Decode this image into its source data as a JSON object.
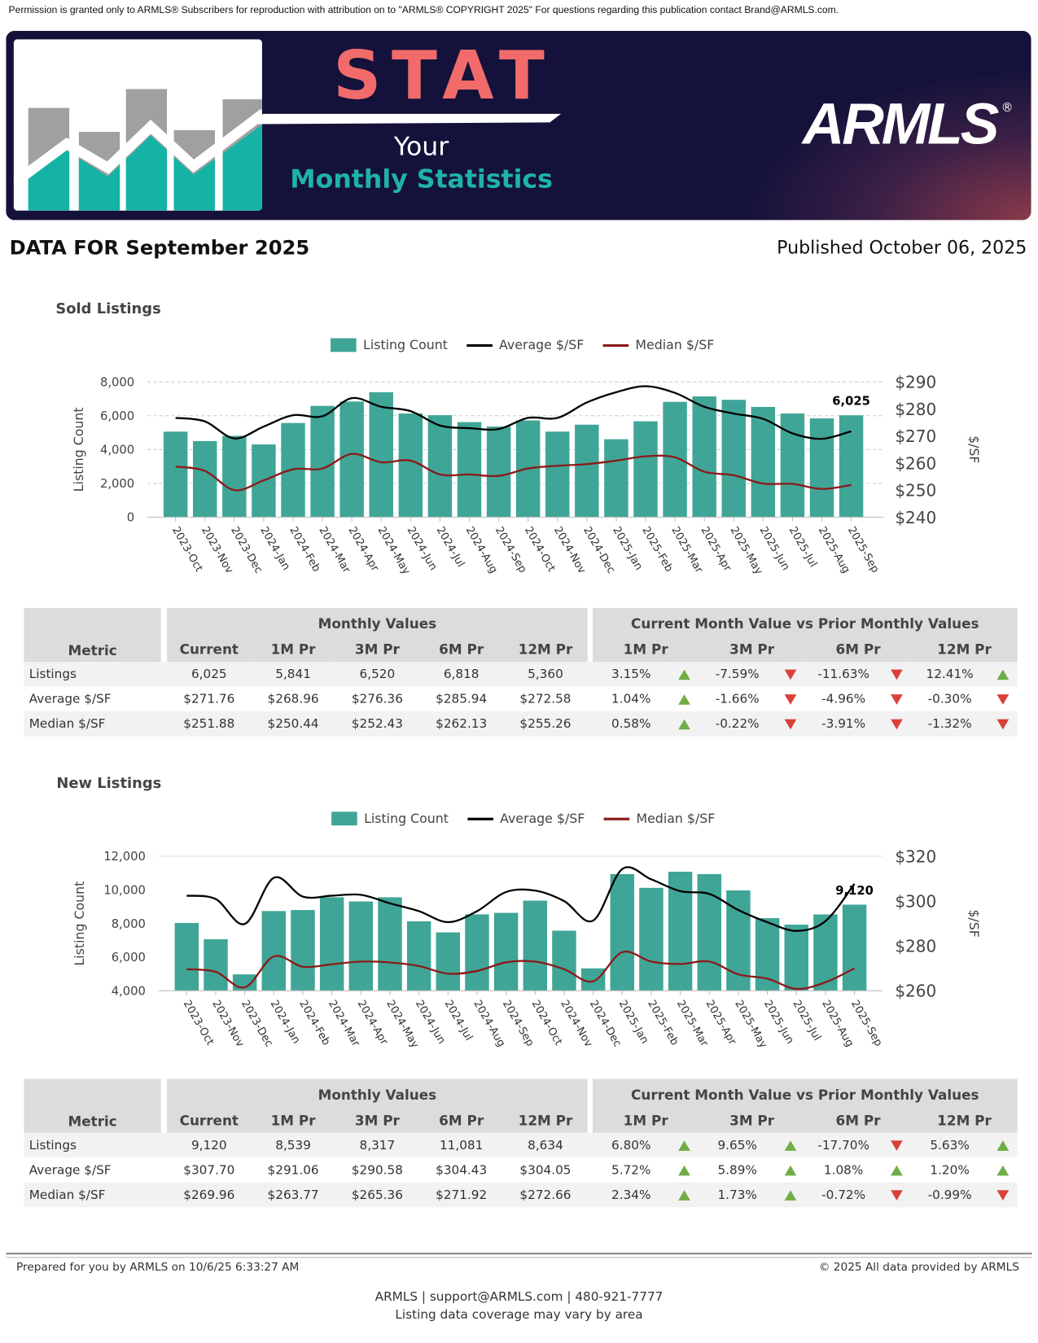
{
  "permission": "Permission is granted only to ARMLS® Subscribers for reproduction with attribution on to \"ARMLS® COPYRIGHT 2025\" For questions regarding this publication contact Brand@ARMLS.com.",
  "banner": {
    "stat": "STAT",
    "your": "Your",
    "monthly": "Monthly Statistics",
    "logo": "ARMLS",
    "reg": "®",
    "colors": {
      "navy": "#14123a",
      "coral": "#f26b6b",
      "teal": "#1fb3a8"
    }
  },
  "data_for": "DATA FOR September 2025",
  "published": "Published October 06, 2025",
  "legend": {
    "count": "Listing Count",
    "avg": "Average $/SF",
    "median": "Median $/SF"
  },
  "colors": {
    "bar": "#3fa597",
    "avg": "#000000",
    "median": "#8b1a1a",
    "up": "#70ad47",
    "down": "#d9413a"
  },
  "sections": [
    {
      "title": "Sold Listings",
      "table": {
        "group1": "Monthly Values",
        "group2": "Current Month Value vs Prior Monthly Values",
        "metric": "Metric",
        "cols": [
          "Current",
          "1M Pr",
          "3M Pr",
          "6M Pr",
          "12M Pr"
        ],
        "cmp_cols": [
          "1M Pr",
          "3M Pr",
          "6M Pr",
          "12M Pr"
        ],
        "rows": [
          {
            "metric": "Listings",
            "values": [
              "6,025",
              "5,841",
              "6,520",
              "6,818",
              "5,360"
            ],
            "cmp": [
              [
                "3.15%",
                "up"
              ],
              [
                "-7.59%",
                "down"
              ],
              [
                "-11.63%",
                "down"
              ],
              [
                "12.41%",
                "up"
              ]
            ]
          },
          {
            "metric": "Average $/SF",
            "values": [
              "$271.76",
              "$268.96",
              "$276.36",
              "$285.94",
              "$272.58"
            ],
            "cmp": [
              [
                "1.04%",
                "up"
              ],
              [
                "-1.66%",
                "down"
              ],
              [
                "-4.96%",
                "down"
              ],
              [
                "-0.30%",
                "down"
              ]
            ]
          },
          {
            "metric": "Median $/SF",
            "values": [
              "$251.88",
              "$250.44",
              "$252.43",
              "$262.13",
              "$255.26"
            ],
            "cmp": [
              [
                "0.58%",
                "up"
              ],
              [
                "-0.22%",
                "down"
              ],
              [
                "-3.91%",
                "down"
              ],
              [
                "-1.32%",
                "down"
              ]
            ]
          }
        ]
      }
    },
    {
      "title": "New Listings",
      "table": {
        "group1": "Monthly Values",
        "group2": "Current Month Value vs Prior Monthly Values",
        "metric": "Metric",
        "cols": [
          "Current",
          "1M Pr",
          "3M Pr",
          "6M Pr",
          "12M Pr"
        ],
        "cmp_cols": [
          "1M Pr",
          "3M Pr",
          "6M Pr",
          "12M Pr"
        ],
        "rows": [
          {
            "metric": "Listings",
            "values": [
              "9,120",
              "8,539",
              "8,317",
              "11,081",
              "8,634"
            ],
            "cmp": [
              [
                "6.80%",
                "up"
              ],
              [
                "9.65%",
                "up"
              ],
              [
                "-17.70%",
                "down"
              ],
              [
                "5.63%",
                "up"
              ]
            ]
          },
          {
            "metric": "Average $/SF",
            "values": [
              "$307.70",
              "$291.06",
              "$290.58",
              "$304.43",
              "$304.05"
            ],
            "cmp": [
              [
                "5.72%",
                "up"
              ],
              [
                "5.89%",
                "up"
              ],
              [
                "1.08%",
                "up"
              ],
              [
                "1.20%",
                "up"
              ]
            ]
          },
          {
            "metric": "Median $/SF",
            "values": [
              "$269.96",
              "$263.77",
              "$265.36",
              "$271.92",
              "$272.66"
            ],
            "cmp": [
              [
                "2.34%",
                "up"
              ],
              [
                "1.73%",
                "up"
              ],
              [
                "-0.72%",
                "down"
              ],
              [
                "-0.99%",
                "down"
              ]
            ]
          }
        ]
      }
    }
  ],
  "chart_data": [
    {
      "type": "bar",
      "title": "Sold Listings",
      "ylabel": "Listing Count",
      "y2label": "$/SF",
      "ylim": [
        0,
        8000
      ],
      "y2lim": [
        240,
        290
      ],
      "yticks": [
        "0",
        "2,000",
        "4,000",
        "6,000",
        "8,000"
      ],
      "y2ticks": [
        "$240",
        "$250",
        "$260",
        "$270",
        "$280",
        "$290"
      ],
      "grid": true,
      "legend": "top",
      "annotation": "6,025",
      "categories": [
        "2023-Oct",
        "2023-Nov",
        "2023-Dec",
        "2024-Jan",
        "2024-Feb",
        "2024-Mar",
        "2024-Apr",
        "2024-May",
        "2024-Jun",
        "2024-Jul",
        "2024-Aug",
        "2024-Sep",
        "2024-Oct",
        "2024-Nov",
        "2024-Dec",
        "2025-Jan",
        "2025-Feb",
        "2025-Mar",
        "2025-Apr",
        "2025-May",
        "2025-Jun",
        "2025-Jul",
        "2025-Aug",
        "2025-Sep"
      ],
      "series": [
        {
          "name": "Listing Count",
          "type": "bar",
          "axis": "left",
          "values": [
            5060,
            4500,
            4810,
            4300,
            5570,
            6580,
            6840,
            7390,
            6130,
            6030,
            5620,
            5360,
            5720,
            5060,
            5470,
            4610,
            5670,
            6818,
            7140,
            6940,
            6520,
            6130,
            5841,
            6025
          ]
        },
        {
          "name": "Average $/SF",
          "type": "line",
          "axis": "right",
          "values": [
            276.7,
            275.4,
            269.1,
            273.5,
            277.7,
            277.3,
            284.0,
            280.8,
            279.2,
            273.9,
            272.9,
            272.58,
            276.7,
            276.7,
            282.4,
            286.2,
            288.4,
            285.94,
            280.8,
            278.3,
            276.36,
            271.0,
            268.96,
            271.76
          ]
        },
        {
          "name": "Median $/SF",
          "type": "line",
          "axis": "right",
          "values": [
            258.7,
            257.1,
            250.0,
            253.6,
            257.7,
            258.0,
            263.4,
            260.3,
            260.9,
            255.8,
            255.8,
            255.26,
            258.0,
            259.0,
            259.6,
            260.9,
            262.5,
            262.13,
            256.8,
            255.5,
            252.43,
            252.3,
            250.44,
            251.88
          ]
        }
      ]
    },
    {
      "type": "bar",
      "title": "New Listings",
      "ylabel": "Listing Count",
      "y2label": "$/SF",
      "ylim": [
        4000,
        12000
      ],
      "y2lim": [
        260,
        320
      ],
      "yticks": [
        "4,000",
        "6,000",
        "8,000",
        "10,000",
        "12,000"
      ],
      "y2ticks": [
        "$260",
        "$280",
        "$300",
        "$320"
      ],
      "grid": false,
      "legend": "top",
      "annotation": "9,120",
      "categories": [
        "2023-Oct",
        "2023-Nov",
        "2023-Dec",
        "2024-Jan",
        "2024-Feb",
        "2024-Mar",
        "2024-Apr",
        "2024-May",
        "2024-Jun",
        "2024-Jul",
        "2024-Aug",
        "2024-Sep",
        "2024-Oct",
        "2024-Nov",
        "2024-Dec",
        "2025-Jan",
        "2025-Feb",
        "2025-Mar",
        "2025-Apr",
        "2025-May",
        "2025-Jun",
        "2025-Jul",
        "2025-Aug",
        "2025-Sep"
      ],
      "series": [
        {
          "name": "Listing Count",
          "type": "bar",
          "axis": "left",
          "values": [
            8030,
            7060,
            4970,
            8740,
            8800,
            9560,
            9310,
            9560,
            8130,
            7470,
            8540,
            8634,
            9360,
            7570,
            5330,
            10940,
            10120,
            11081,
            10940,
            9970,
            8317,
            7930,
            8539,
            9120
          ]
        },
        {
          "name": "Average $/SF",
          "type": "line",
          "axis": "right",
          "values": [
            302.4,
            300.9,
            289.8,
            310.4,
            302.0,
            302.4,
            302.8,
            299.0,
            295.5,
            290.6,
            295.5,
            304.05,
            304.7,
            300.0,
            291.3,
            314.3,
            309.7,
            304.43,
            303.2,
            296.0,
            290.58,
            286.7,
            291.06,
            307.7
          ]
        },
        {
          "name": "Median $/SF",
          "type": "line",
          "axis": "right",
          "values": [
            269.6,
            268.4,
            261.5,
            275.3,
            270.7,
            271.8,
            273.0,
            272.6,
            271.0,
            267.6,
            268.8,
            272.66,
            273.0,
            269.6,
            264.2,
            277.2,
            273.0,
            271.92,
            273.0,
            267.3,
            265.36,
            260.8,
            263.77,
            269.96
          ]
        }
      ]
    }
  ],
  "footer": {
    "prepared": "Prepared for you by ARMLS on 10/6/25 6:33:27 AM",
    "copyright": "© 2025 All data provided by ARMLS",
    "contact": "ARMLS | support@ARMLS.com | 480-921-7777",
    "coverage": "Listing data coverage may vary by area"
  }
}
